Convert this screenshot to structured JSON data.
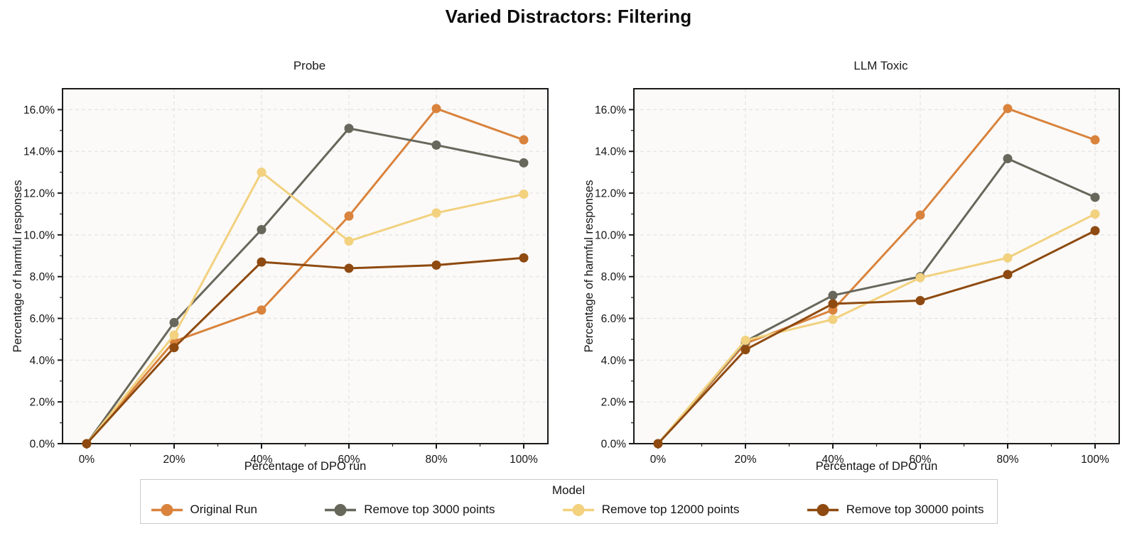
{
  "title": "Varied Distractors: Filtering",
  "legend": {
    "title": "Model",
    "entries": [
      {
        "label": "Original Run",
        "color": "#D9833D"
      },
      {
        "label": "Remove top 3000 points",
        "color": "#67675B"
      },
      {
        "label": "Remove top 12000 points",
        "color": "#F2D17F"
      },
      {
        "label": "Remove top 30000 points",
        "color": "#8E4A10"
      }
    ]
  },
  "axes": {
    "xlabel": "Percentage of DPO run",
    "ylabel": "Percentage of harmful responses",
    "x_tick_values": [
      0,
      20,
      40,
      60,
      80,
      100
    ],
    "x_tick_labels": [
      "0%",
      "20%",
      "40%",
      "60%",
      "80%",
      "100%"
    ],
    "y_tick_values": [
      0,
      2,
      4,
      6,
      8,
      10,
      12,
      14,
      16
    ],
    "y_tick_labels": [
      "0.0%",
      "2.0%",
      "4.0%",
      "6.0%",
      "8.0%",
      "10.0%",
      "12.0%",
      "14.0%",
      "16.0%"
    ],
    "ylim": [
      0,
      17
    ],
    "grid": "dashed",
    "grid_color": "#e3e3e3",
    "plot_bg": "#fbfaf8",
    "border_color": "#1a1a1a"
  },
  "chart_data": [
    {
      "type": "line",
      "title": "Probe",
      "xlabel": "Percentage of DPO run",
      "ylabel": "Percentage of harmful responses",
      "x": [
        0,
        20,
        40,
        60,
        80,
        100
      ],
      "ylim": [
        0,
        17
      ],
      "legend_position": "bottom",
      "series": [
        {
          "name": "Original Run",
          "color": "#D9833D",
          "values": [
            0.0,
            4.9,
            6.4,
            10.9,
            16.05,
            14.55
          ]
        },
        {
          "name": "Remove top 3000 points",
          "color": "#67675B",
          "values": [
            0.0,
            5.8,
            10.25,
            15.1,
            14.3,
            13.45
          ]
        },
        {
          "name": "Remove top 12000 points",
          "color": "#F2D17F",
          "values": [
            0.0,
            5.2,
            13.0,
            9.7,
            11.05,
            11.95
          ]
        },
        {
          "name": "Remove top 30000 points",
          "color": "#8E4A10",
          "values": [
            0.0,
            4.6,
            8.7,
            8.4,
            8.55,
            8.9
          ]
        }
      ]
    },
    {
      "type": "line",
      "title": "LLM Toxic",
      "xlabel": "Percentage of DPO run",
      "ylabel": "Percentage of harmful responses",
      "x": [
        0,
        20,
        40,
        60,
        80,
        100
      ],
      "ylim": [
        0,
        17
      ],
      "legend_position": "bottom",
      "series": [
        {
          "name": "Original Run",
          "color": "#D9833D",
          "values": [
            0.0,
            4.8,
            6.4,
            10.95,
            16.05,
            14.55
          ]
        },
        {
          "name": "Remove top 3000 points",
          "color": "#67675B",
          "values": [
            0.0,
            4.9,
            7.1,
            8.0,
            13.65,
            11.8
          ]
        },
        {
          "name": "Remove top 12000 points",
          "color": "#F2D17F",
          "values": [
            0.0,
            4.95,
            5.95,
            7.95,
            8.9,
            11.0
          ]
        },
        {
          "name": "Remove top 30000 points",
          "color": "#8E4A10",
          "values": [
            0.0,
            4.5,
            6.7,
            6.85,
            8.1,
            10.2
          ]
        }
      ]
    }
  ]
}
